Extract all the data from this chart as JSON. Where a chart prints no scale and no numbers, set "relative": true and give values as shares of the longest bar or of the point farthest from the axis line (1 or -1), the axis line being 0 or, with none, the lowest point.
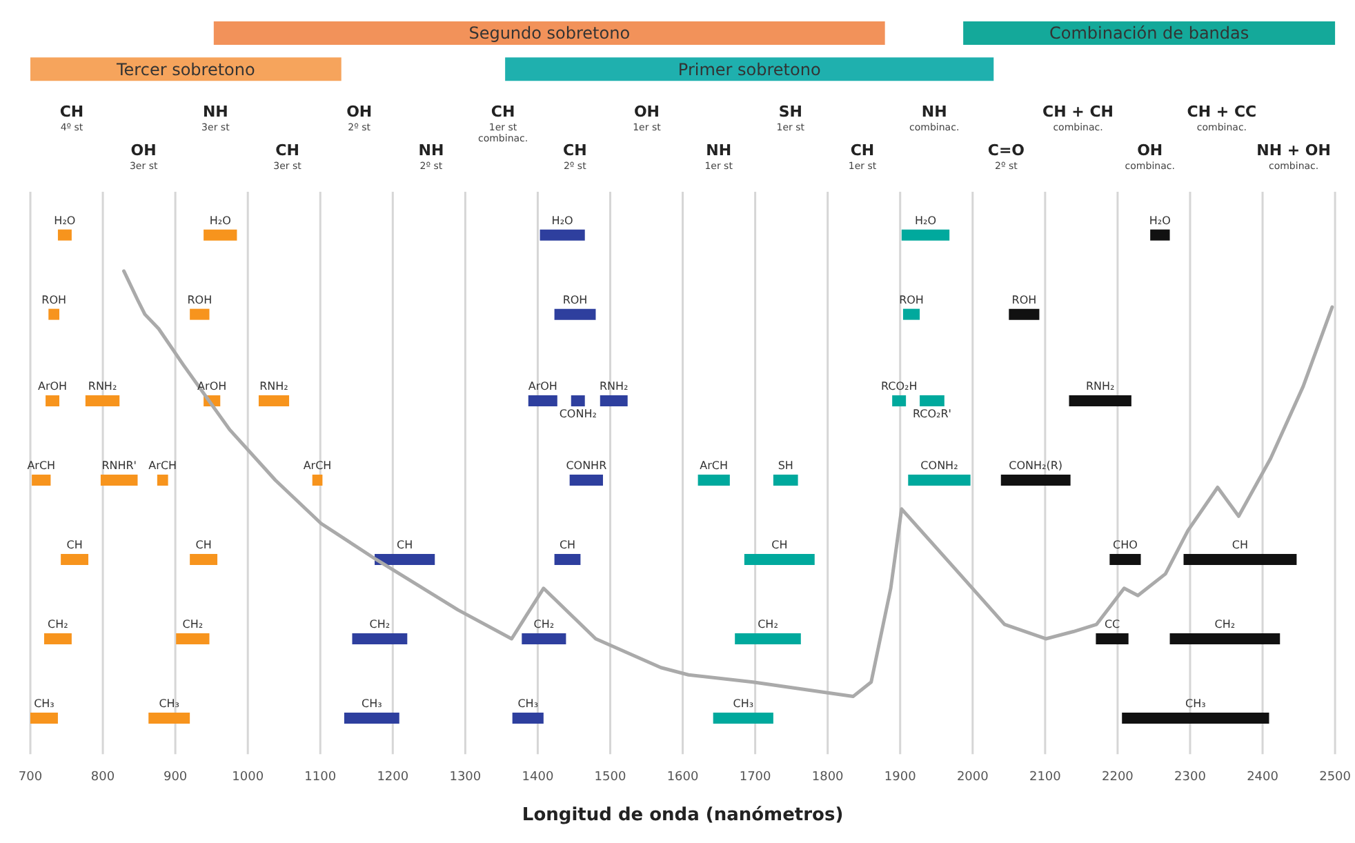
{
  "chart_data": {
    "type": "line",
    "relative": true,
    "xlabel": "Longitud de onda (nanómetros)",
    "xlim": [
      700,
      2500
    ],
    "xticks": [
      700,
      800,
      900,
      1000,
      1100,
      1200,
      1300,
      1400,
      1500,
      1600,
      1700,
      1800,
      1900,
      2000,
      2100,
      2200,
      2300,
      2400,
      2500
    ],
    "grid": "x",
    "legend": false,
    "annotations": [
      "CH\n4º st",
      "OH\n3er st",
      "NH\n3er st",
      "CH\n3er st",
      "OH\n2º st",
      "NH\n2º st",
      "CH\n1er st\ncombinac.",
      "CH\n2º st",
      "OH\n1er st",
      "NH\n1er st",
      "SH\n1er st",
      "CH\n1er st",
      "NH\ncombinac.",
      "C=O\n2º st",
      "CH + CH\ncombinac.",
      "OH\ncombinac.",
      "CH + CC\ncombinac.",
      "NH + OH\ncombinac."
    ],
    "series": [
      {
        "color": "#aaaaaa",
        "x": [
          829,
          848,
          858,
          877,
          911,
          975,
          1038,
          1101,
          1177,
          1290,
          1364,
          1408,
          1480,
          1570,
          1608,
          1697,
          1835,
          1860,
          1887,
          1902,
          1982,
          2044,
          2101,
          2139,
          2171,
          2209,
          2228,
          2266,
          2297,
          2338,
          2367,
          2411,
          2456,
          2496
        ],
        "values": [
          0.67,
          0.63,
          0.61,
          0.59,
          0.54,
          0.45,
          0.38,
          0.32,
          0.27,
          0.2,
          0.16,
          0.23,
          0.16,
          0.12,
          0.11,
          0.1,
          0.08,
          0.1,
          0.23,
          0.34,
          0.25,
          0.18,
          0.16,
          0.17,
          0.18,
          0.23,
          0.22,
          0.25,
          0.31,
          0.37,
          0.33,
          0.41,
          0.51,
          0.62
        ]
      },
      {
        "name": "Segundo sobretono",
        "color": "#f2925a",
        "x": [
          953,
          1879
        ],
        "values": [
          1,
          1
        ]
      },
      {
        "name": "Combinación de bandas",
        "color": "#14a99a",
        "x": [
          1987,
          2500
        ],
        "values": [
          1,
          1
        ]
      },
      {
        "name": "Tercer sobretono",
        "color": "#f6a45c",
        "x": [
          700,
          1129
        ],
        "values": [
          0.95,
          0.95
        ]
      },
      {
        "name": "Primer sobretono",
        "color": "#1fb0ae",
        "x": [
          1355,
          2029
        ],
        "values": [
          0.95,
          0.95
        ]
      },
      {
        "name": "H₂O",
        "color": "#f7941d",
        "x": [
          738,
          757
        ],
        "values": [
          0.72,
          0.72
        ]
      },
      {
        "name": "H₂O",
        "color": "#f7941d",
        "x": [
          939,
          985
        ],
        "values": [
          0.72,
          0.72
        ]
      },
      {
        "name": "H₂O",
        "color": "#2e3f9e",
        "x": [
          1403,
          1465
        ],
        "values": [
          0.72,
          0.72
        ]
      },
      {
        "name": "H₂O",
        "color": "#00a99d",
        "x": [
          1902,
          1968
        ],
        "values": [
          0.72,
          0.72
        ]
      },
      {
        "name": "H₂O",
        "color": "#111111",
        "x": [
          2245,
          2272
        ],
        "values": [
          0.72,
          0.72
        ]
      },
      {
        "name": "ROH",
        "color": "#f7941d",
        "x": [
          725,
          740
        ],
        "values": [
          0.61,
          0.61
        ]
      },
      {
        "name": "ROH",
        "color": "#f7941d",
        "x": [
          920,
          947
        ],
        "values": [
          0.61,
          0.61
        ]
      },
      {
        "name": "ROH",
        "color": "#2e3f9e",
        "x": [
          1423,
          1480
        ],
        "values": [
          0.61,
          0.61
        ]
      },
      {
        "name": "ROH",
        "color": "#00a99d",
        "x": [
          1904,
          1927
        ],
        "values": [
          0.61,
          0.61
        ]
      },
      {
        "name": "ROH",
        "color": "#111111",
        "x": [
          2050,
          2092
        ],
        "values": [
          0.61,
          0.61
        ]
      },
      {
        "name": "ArOH",
        "color": "#f7941d",
        "x": [
          721,
          740
        ],
        "values": [
          0.49,
          0.49
        ]
      },
      {
        "name": "RNH₂",
        "color": "#f7941d",
        "x": [
          776,
          823
        ],
        "values": [
          0.49,
          0.49
        ]
      },
      {
        "name": "ArOH",
        "color": "#f7941d",
        "x": [
          939,
          962
        ],
        "values": [
          0.49,
          0.49
        ]
      },
      {
        "name": "RNH₂",
        "color": "#f7941d",
        "x": [
          1015,
          1057
        ],
        "values": [
          0.49,
          0.49
        ]
      },
      {
        "name": "ArOH",
        "color": "#2e3f9e",
        "x": [
          1387,
          1427
        ],
        "values": [
          0.49,
          0.49
        ]
      },
      {
        "name": "CONH₂",
        "color": "#2e3f9e",
        "x": [
          1446,
          1465
        ],
        "values": [
          0.49,
          0.49
        ]
      },
      {
        "name": "RNH₂",
        "color": "#2e3f9e",
        "x": [
          1486,
          1524
        ],
        "values": [
          0.49,
          0.49
        ]
      },
      {
        "name": "RCO₂H",
        "color": "#00a99d",
        "x": [
          1889,
          1908
        ],
        "values": [
          0.49,
          0.49
        ]
      },
      {
        "name": "RCO₂R'",
        "color": "#00a99d",
        "x": [
          1927,
          1961
        ],
        "values": [
          0.49,
          0.49
        ]
      },
      {
        "name": "RNH₂",
        "color": "#111111",
        "x": [
          2133,
          2219
        ],
        "values": [
          0.49,
          0.49
        ]
      },
      {
        "name": "ArCH",
        "color": "#f7941d",
        "x": [
          702,
          728
        ],
        "values": [
          0.38,
          0.38
        ]
      },
      {
        "name": "RNHR'",
        "color": "#f7941d",
        "x": [
          797,
          848
        ],
        "values": [
          0.38,
          0.38
        ]
      },
      {
        "name": "ArCH",
        "color": "#f7941d",
        "x": [
          875,
          890
        ],
        "values": [
          0.38,
          0.38
        ]
      },
      {
        "name": "ArCH",
        "color": "#f7941d",
        "x": [
          1089,
          1103
        ],
        "values": [
          0.38,
          0.38
        ]
      },
      {
        "name": "CONHR",
        "color": "#2e3f9e",
        "x": [
          1444,
          1490
        ],
        "values": [
          0.38,
          0.38
        ]
      },
      {
        "name": "ArCH",
        "color": "#00a99d",
        "x": [
          1621,
          1665
        ],
        "values": [
          0.38,
          0.38
        ]
      },
      {
        "name": "SH",
        "color": "#00a99d",
        "x": [
          1725,
          1759
        ],
        "values": [
          0.38,
          0.38
        ]
      },
      {
        "name": "CONH₂",
        "color": "#00a99d",
        "x": [
          1911,
          1997
        ],
        "values": [
          0.38,
          0.38
        ]
      },
      {
        "name": "CONH₂(R)",
        "color": "#111111",
        "x": [
          2039,
          2135
        ],
        "values": [
          0.38,
          0.38
        ]
      },
      {
        "name": "CH",
        "color": "#f7941d",
        "x": [
          742,
          780
        ],
        "values": [
          0.27,
          0.27
        ]
      },
      {
        "name": "CH",
        "color": "#f7941d",
        "x": [
          920,
          958
        ],
        "values": [
          0.27,
          0.27
        ]
      },
      {
        "name": "CH",
        "color": "#2e3f9e",
        "x": [
          1175,
          1258
        ],
        "values": [
          0.27,
          0.27
        ]
      },
      {
        "name": "CH",
        "color": "#2e3f9e",
        "x": [
          1423,
          1459
        ],
        "values": [
          0.27,
          0.27
        ]
      },
      {
        "name": "CH",
        "color": "#00a99d",
        "x": [
          1685,
          1782
        ],
        "values": [
          0.27,
          0.27
        ]
      },
      {
        "name": "CHO",
        "color": "#111111",
        "x": [
          2189,
          2232
        ],
        "values": [
          0.27,
          0.27
        ]
      },
      {
        "name": "CH",
        "color": "#111111",
        "x": [
          2291,
          2447
        ],
        "values": [
          0.27,
          0.27
        ]
      },
      {
        "name": "CH₂",
        "color": "#f7941d",
        "x": [
          719,
          757
        ],
        "values": [
          0.16,
          0.16
        ]
      },
      {
        "name": "CH₂",
        "color": "#f7941d",
        "x": [
          901,
          947
        ],
        "values": [
          0.16,
          0.16
        ]
      },
      {
        "name": "CH₂",
        "color": "#2e3f9e",
        "x": [
          1144,
          1220
        ],
        "values": [
          0.16,
          0.16
        ]
      },
      {
        "name": "CH₂",
        "color": "#2e3f9e",
        "x": [
          1378,
          1439
        ],
        "values": [
          0.16,
          0.16
        ]
      },
      {
        "name": "CH₂",
        "color": "#00a99d",
        "x": [
          1672,
          1763
        ],
        "values": [
          0.16,
          0.16
        ]
      },
      {
        "name": "CC",
        "color": "#111111",
        "x": [
          2170,
          2215
        ],
        "values": [
          0.16,
          0.16
        ]
      },
      {
        "name": "CH₂",
        "color": "#111111",
        "x": [
          2272,
          2424
        ],
        "values": [
          0.16,
          0.16
        ]
      },
      {
        "name": "CH₃",
        "color": "#f7941d",
        "x": [
          700,
          738
        ],
        "values": [
          0.05,
          0.05
        ]
      },
      {
        "name": "CH₃",
        "color": "#f7941d",
        "x": [
          863,
          920
        ],
        "values": [
          0.05,
          0.05
        ]
      },
      {
        "name": "CH₃",
        "color": "#2e3f9e",
        "x": [
          1133,
          1209
        ],
        "values": [
          0.05,
          0.05
        ]
      },
      {
        "name": "CH₃",
        "color": "#2e3f9e",
        "x": [
          1365,
          1408
        ],
        "values": [
          0.05,
          0.05
        ]
      },
      {
        "name": "CH₃",
        "color": "#00a99d",
        "x": [
          1642,
          1725
        ],
        "values": [
          0.05,
          0.05
        ]
      },
      {
        "name": "CH₃",
        "color": "#111111",
        "x": [
          2206,
          2409
        ],
        "values": [
          0.05,
          0.05
        ]
      }
    ]
  }
}
